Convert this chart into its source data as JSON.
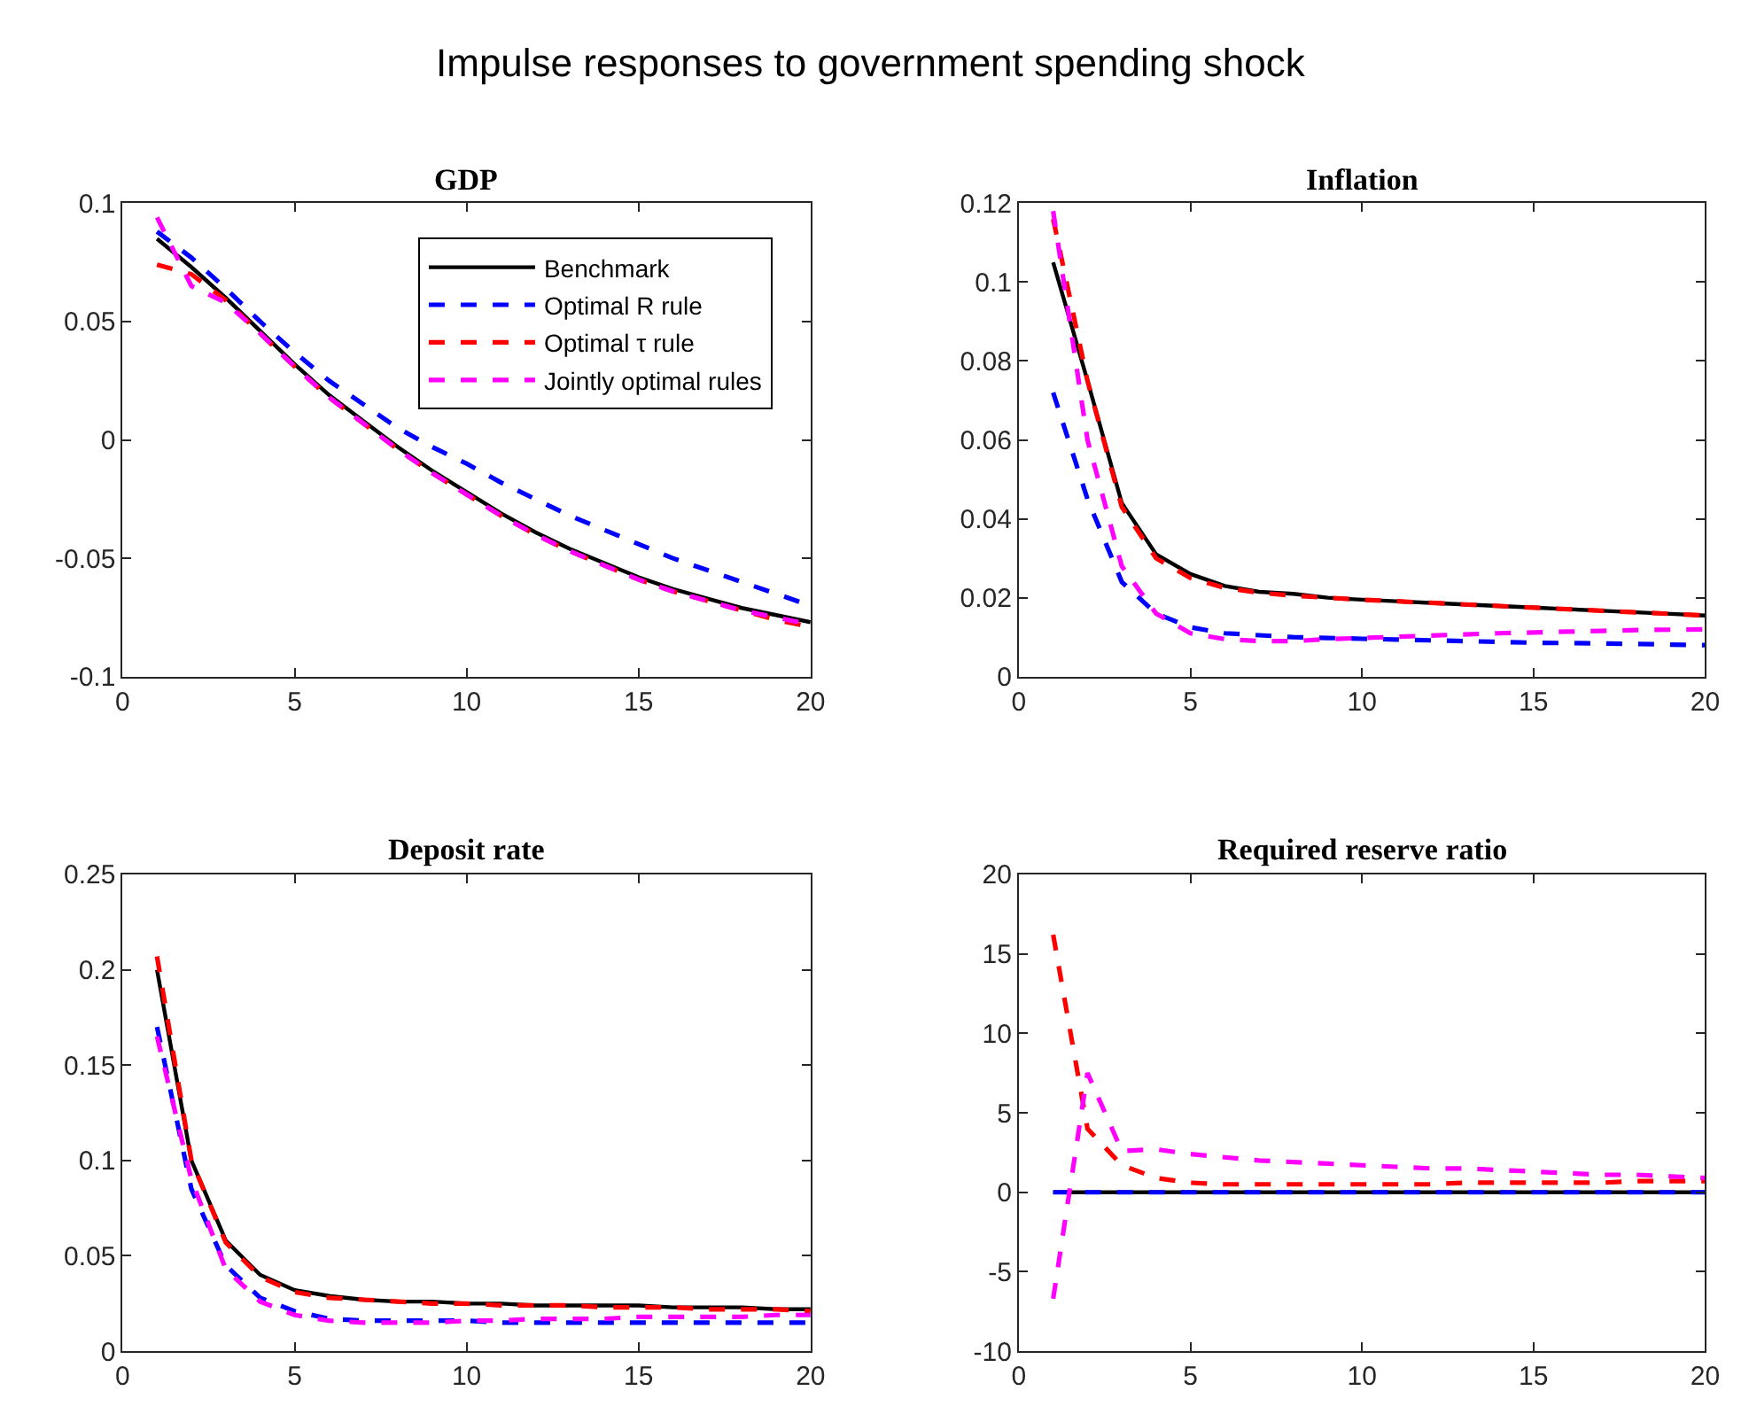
{
  "chart_data": [
    {
      "type": "line",
      "title": "GDP",
      "annotations": [
        "Impulse responses to government spending shock"
      ],
      "x": [
        1,
        2,
        3,
        4,
        5,
        6,
        7,
        8,
        9,
        10,
        11,
        12,
        13,
        14,
        15,
        16,
        17,
        18,
        19,
        20
      ],
      "xlim": [
        0,
        20
      ],
      "xticks": [
        0,
        5,
        10,
        15,
        20
      ],
      "ylim": [
        -0.1,
        0.1
      ],
      "yticks": [
        -0.1,
        -0.05,
        0,
        0.05,
        0.1
      ],
      "grid": false,
      "legend": "top right",
      "marker": "none",
      "series": [
        {
          "name": "Benchmark",
          "color": "#000000",
          "line_style": "solid",
          "values": [
            0.085,
            0.073,
            0.06,
            0.046,
            0.032,
            0.019,
            0.008,
            -0.003,
            -0.013,
            -0.022,
            -0.031,
            -0.039,
            -0.046,
            -0.052,
            -0.058,
            -0.063,
            -0.067,
            -0.071,
            -0.074,
            -0.077
          ]
        },
        {
          "name": "Optimal R rule",
          "color": "#0000ff",
          "line_style": "dashed",
          "values": [
            0.088,
            0.077,
            0.064,
            0.05,
            0.037,
            0.025,
            0.015,
            0.005,
            -0.003,
            -0.01,
            -0.018,
            -0.025,
            -0.032,
            -0.038,
            -0.044,
            -0.05,
            -0.055,
            -0.06,
            -0.065,
            -0.07
          ]
        },
        {
          "name": "Optimal τ rule",
          "color": "#ff0000",
          "line_style": "dashed",
          "values": [
            0.074,
            0.07,
            0.059,
            0.045,
            0.031,
            0.018,
            0.007,
            -0.004,
            -0.014,
            -0.023,
            -0.032,
            -0.04,
            -0.047,
            -0.053,
            -0.059,
            -0.064,
            -0.068,
            -0.072,
            -0.076,
            -0.079
          ]
        },
        {
          "name": "Jointly optimal rules",
          "color": "#ff00ff",
          "line_style": "dashed",
          "values": [
            0.094,
            0.065,
            0.058,
            0.045,
            0.031,
            0.018,
            0.007,
            -0.004,
            -0.014,
            -0.023,
            -0.032,
            -0.04,
            -0.047,
            -0.053,
            -0.059,
            -0.064,
            -0.068,
            -0.072,
            -0.075,
            -0.078
          ]
        }
      ]
    },
    {
      "type": "line",
      "title": "Inflation",
      "x": [
        1,
        2,
        3,
        4,
        5,
        6,
        7,
        8,
        9,
        10,
        11,
        12,
        13,
        14,
        15,
        16,
        17,
        18,
        19,
        20
      ],
      "xlim": [
        0,
        20
      ],
      "xticks": [
        0,
        5,
        10,
        15,
        20
      ],
      "ylim": [
        0,
        0.12
      ],
      "yticks": [
        0,
        0.02,
        0.04,
        0.06,
        0.08,
        0.1,
        0.12
      ],
      "grid": false,
      "legend": false,
      "marker": "none",
      "series": [
        {
          "color": "#000000",
          "line_style": "solid",
          "values": [
            0.105,
            0.075,
            0.044,
            0.031,
            0.026,
            0.023,
            0.0215,
            0.021,
            0.02,
            0.0195,
            0.0191,
            0.0187,
            0.0183,
            0.0179,
            0.0175,
            0.0171,
            0.0167,
            0.0163,
            0.0159,
            0.0155
          ]
        },
        {
          "color": "#0000ff",
          "line_style": "dashed",
          "values": [
            0.072,
            0.045,
            0.024,
            0.016,
            0.0125,
            0.011,
            0.0105,
            0.01,
            0.0098,
            0.0096,
            0.0094,
            0.0092,
            0.009,
            0.0088,
            0.0086,
            0.0085,
            0.0084,
            0.0083,
            0.0081,
            0.008
          ]
        },
        {
          "color": "#ff0000",
          "line_style": "dashed",
          "values": [
            0.116,
            0.075,
            0.043,
            0.03,
            0.025,
            0.0225,
            0.0213,
            0.0205,
            0.02,
            0.0195,
            0.0191,
            0.0187,
            0.0183,
            0.0179,
            0.0175,
            0.0171,
            0.0167,
            0.0163,
            0.0159,
            0.0155
          ]
        },
        {
          "color": "#ff00ff",
          "line_style": "dashed",
          "values": [
            0.118,
            0.06,
            0.028,
            0.016,
            0.011,
            0.0095,
            0.009,
            0.009,
            0.0095,
            0.0098,
            0.0101,
            0.0104,
            0.0107,
            0.011,
            0.0112,
            0.0114,
            0.0116,
            0.0118,
            0.0119,
            0.012
          ]
        }
      ]
    },
    {
      "type": "line",
      "title": "Deposit rate",
      "x": [
        1,
        2,
        3,
        4,
        5,
        6,
        7,
        8,
        9,
        10,
        11,
        12,
        13,
        14,
        15,
        16,
        17,
        18,
        19,
        20
      ],
      "xlim": [
        0,
        20
      ],
      "xticks": [
        0,
        5,
        10,
        15,
        20
      ],
      "ylim": [
        0,
        0.25
      ],
      "yticks": [
        0,
        0.05,
        0.1,
        0.15,
        0.2,
        0.25
      ],
      "grid": false,
      "legend": false,
      "marker": "none",
      "series": [
        {
          "color": "#000000",
          "line_style": "solid",
          "values": [
            0.2,
            0.1,
            0.058,
            0.04,
            0.032,
            0.029,
            0.027,
            0.026,
            0.026,
            0.025,
            0.025,
            0.024,
            0.024,
            0.024,
            0.024,
            0.023,
            0.023,
            0.023,
            0.022,
            0.022
          ]
        },
        {
          "color": "#0000ff",
          "line_style": "dashed",
          "values": [
            0.17,
            0.085,
            0.045,
            0.028,
            0.021,
            0.017,
            0.016,
            0.016,
            0.016,
            0.016,
            0.015,
            0.015,
            0.015,
            0.015,
            0.015,
            0.015,
            0.015,
            0.015,
            0.015,
            0.015
          ]
        },
        {
          "color": "#ff0000",
          "line_style": "dashed",
          "values": [
            0.207,
            0.1,
            0.057,
            0.039,
            0.031,
            0.028,
            0.027,
            0.026,
            0.025,
            0.025,
            0.024,
            0.024,
            0.024,
            0.023,
            0.023,
            0.023,
            0.022,
            0.022,
            0.022,
            0.021
          ]
        },
        {
          "color": "#ff00ff",
          "line_style": "dashed",
          "values": [
            0.165,
            0.09,
            0.043,
            0.026,
            0.019,
            0.016,
            0.015,
            0.015,
            0.015,
            0.016,
            0.016,
            0.017,
            0.017,
            0.017,
            0.018,
            0.018,
            0.018,
            0.018,
            0.019,
            0.019
          ]
        }
      ]
    },
    {
      "type": "line",
      "title": "Required reserve ratio",
      "x": [
        1,
        2,
        3,
        4,
        5,
        6,
        7,
        8,
        9,
        10,
        11,
        12,
        13,
        14,
        15,
        16,
        17,
        18,
        19,
        20
      ],
      "xlim": [
        0,
        20
      ],
      "xticks": [
        0,
        5,
        10,
        15,
        20
      ],
      "ylim": [
        -10,
        20
      ],
      "yticks": [
        -10,
        -5,
        0,
        5,
        10,
        15,
        20
      ],
      "grid": false,
      "legend": false,
      "marker": "none",
      "series": [
        {
          "color": "#000000",
          "line_style": "solid",
          "values": [
            0,
            0,
            0,
            0,
            0,
            0,
            0,
            0,
            0,
            0,
            0,
            0,
            0,
            0,
            0,
            0,
            0,
            0,
            0,
            0
          ]
        },
        {
          "color": "#0000ff",
          "line_style": "dashed",
          "values": [
            0,
            0,
            0,
            0,
            0,
            0,
            0,
            0,
            0,
            0,
            0,
            0,
            0,
            0,
            0,
            0,
            0,
            0,
            0,
            0
          ]
        },
        {
          "color": "#ff0000",
          "line_style": "dashed",
          "values": [
            16.2,
            4.0,
            1.7,
            0.9,
            0.6,
            0.5,
            0.5,
            0.5,
            0.5,
            0.5,
            0.5,
            0.5,
            0.6,
            0.6,
            0.6,
            0.6,
            0.6,
            0.7,
            0.7,
            0.7
          ]
        },
        {
          "color": "#ff00ff",
          "line_style": "dashed",
          "values": [
            -6.7,
            7.5,
            2.6,
            2.7,
            2.4,
            2.2,
            2.0,
            1.9,
            1.8,
            1.7,
            1.6,
            1.5,
            1.5,
            1.4,
            1.3,
            1.2,
            1.1,
            1.1,
            1.0,
            0.9
          ]
        }
      ]
    }
  ]
}
